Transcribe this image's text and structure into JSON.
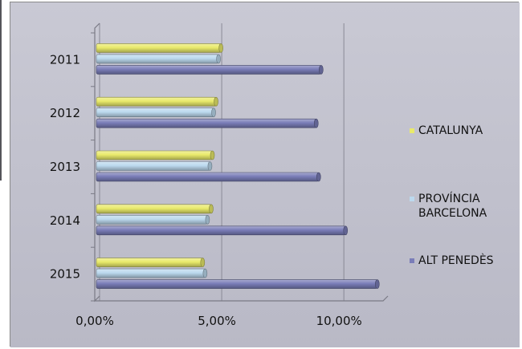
{
  "chart_data": {
    "type": "bar",
    "orientation": "horizontal",
    "categories": [
      "2011",
      "2012",
      "2013",
      "2014",
      "2015"
    ],
    "series": [
      {
        "name": "CATALUNYA",
        "color": "#e9ea6b",
        "values": [
          5.1,
          4.9,
          4.75,
          4.7,
          4.35
        ]
      },
      {
        "name": "PROVÍNCIA BARCELONA",
        "color": "#bcd9ee",
        "values": [
          5.0,
          4.8,
          4.65,
          4.55,
          4.45
        ]
      },
      {
        "name": "ALT PENEDÈS",
        "color": "#7a7db8",
        "values": [
          9.2,
          9.0,
          9.1,
          10.2,
          11.5
        ]
      }
    ],
    "x_ticks": [
      "0,00%",
      "5,00%",
      "10,00%"
    ],
    "xlim": [
      0,
      12
    ],
    "grid": "vertical major",
    "legend_position": "right",
    "plot_background": "#c0c0cc",
    "title": "",
    "xlabel": "",
    "ylabel": ""
  }
}
